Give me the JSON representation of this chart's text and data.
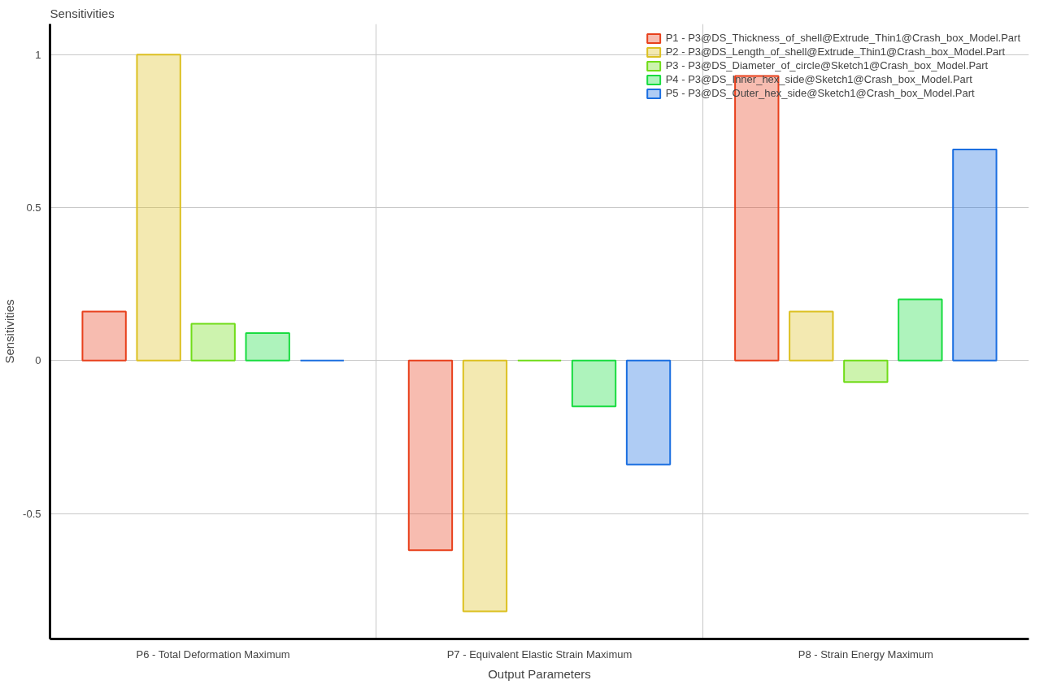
{
  "chart_data": {
    "type": "bar",
    "title": "Sensitivities",
    "xlabel": "Output Parameters",
    "ylabel": "Sensitivities",
    "categories": [
      "P6 - Total Deformation Maximum",
      "P7 - Equivalent Elastic Strain Maximum",
      "P8 - Strain Energy Maximum"
    ],
    "series": [
      {
        "name": "P1 - P3@DS_Thickness_of_shell@Extrude_Thin1@Crash_box_Model.Part",
        "color": "#e8401c",
        "values": [
          0.16,
          -0.62,
          0.93
        ]
      },
      {
        "name": "P2 - P3@DS_Length_of_shell@Extrude_Thin1@Crash_box_Model.Part",
        "color": "#dcc020",
        "values": [
          1.0,
          -0.82,
          0.16
        ]
      },
      {
        "name": "P3 - P3@DS_Diameter_of_circle@Sketch1@Crash_box_Model.Part",
        "color": "#70dc18",
        "values": [
          0.12,
          0.0,
          -0.07
        ]
      },
      {
        "name": "P4 - P3@DS_Inner_hex_side@Sketch1@Crash_box_Model.Part",
        "color": "#18dc40",
        "values": [
          0.09,
          -0.15,
          0.2
        ]
      },
      {
        "name": "P5 - P3@DS_Outer_hex_side@Sketch1@Crash_box_Model.Part",
        "color": "#1a6ee0",
        "values": [
          0.0,
          -0.34,
          0.69
        ]
      }
    ],
    "ylim": [
      -0.91,
      1.1
    ],
    "yticks": [
      {
        "value": 1,
        "label": "1"
      },
      0.5,
      0,
      -0.5
    ],
    "grid": true,
    "legend": "top right"
  }
}
